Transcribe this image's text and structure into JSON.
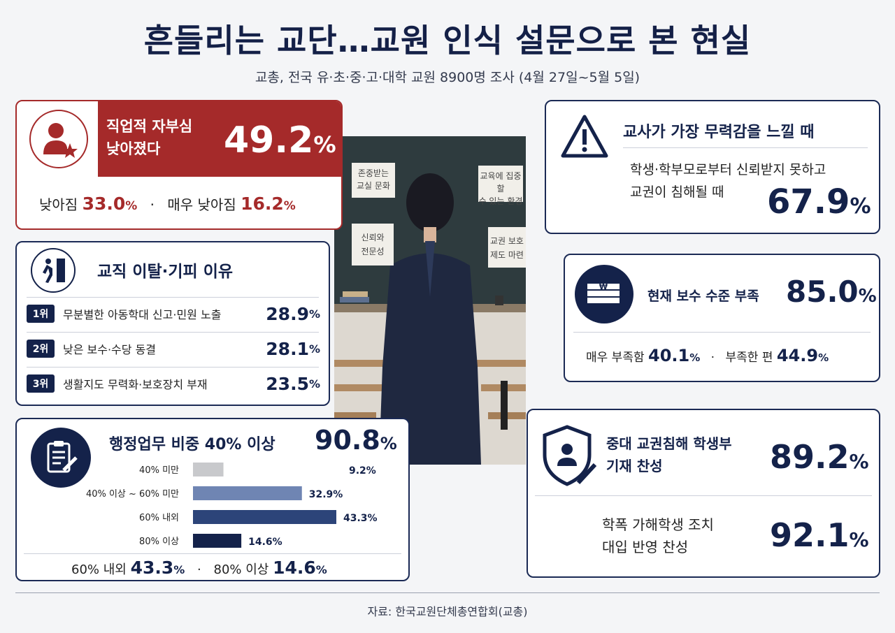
{
  "title": "흔들리는 교단…교원 인식 설문으로 본 현실",
  "subtitle": "교총, 전국 유·초·중·고·대학 교원 8900명 조사 (4월 27일~5월 5일)",
  "pride": {
    "label_line1": "직업적 자부심",
    "label_line2": "낮아졌다",
    "value": "49.2",
    "pct": "%",
    "sub1_label": "낮아짐",
    "sub1_value": "33.0",
    "sub_sep": "·",
    "sub2_label": "매우 낮아짐",
    "sub2_value": "16.2",
    "color": "#a52a2a"
  },
  "reasons": {
    "heading": "교직 이탈·기피 이유",
    "items": [
      {
        "rank": "1위",
        "text": "무분별한 아동학대 신고·민원 노출",
        "value": "28.9"
      },
      {
        "rank": "2위",
        "text": "낮은 보수·수당 동결",
        "value": "28.1"
      },
      {
        "rank": "3위",
        "text": "생활지도 무력화·보호장치 부재",
        "value": "23.5"
      }
    ]
  },
  "admin": {
    "heading": "행정업무 비중 40% 이상",
    "value": "90.8",
    "bars": [
      {
        "label": "40% 미만",
        "value": 9.2,
        "value_text": "9.2%",
        "color": "#c8c9cc"
      },
      {
        "label": "40% 이상 ~ 60% 미만",
        "value": 32.9,
        "value_text": "32.9%",
        "color": "#6f85b3"
      },
      {
        "label": "60% 내외",
        "value": 43.3,
        "value_text": "43.3%",
        "color": "#2c4479"
      },
      {
        "label": "80% 이상",
        "value": 14.6,
        "value_text": "14.6%",
        "color": "#14224a"
      }
    ],
    "foot1_label": "60% 내외",
    "foot1_value": "43.3",
    "foot_sep": "·",
    "foot2_label": "80% 이상",
    "foot2_value": "14.6"
  },
  "powerless": {
    "heading": "교사가 가장 무력감을 느낄 때",
    "line1": "학생·학부모로부터 신뢰받지 못하고",
    "line2": "교권이 침해될 때",
    "value": "67.9"
  },
  "pay": {
    "heading": "현재 보수 수준 부족",
    "value": "85.0",
    "sub1_label": "매우 부족함",
    "sub1_value": "40.1",
    "sub_sep": "·",
    "sub2_label": "부족한 편",
    "sub2_value": "44.9",
    "currency_symbol": "₩"
  },
  "record": {
    "item1_line1": "중대 교권침해 학생부",
    "item1_line2": "기재 찬성",
    "item1_value": "89.2",
    "item2_line1": "학폭 가해학생 조치",
    "item2_line2": "대입 반영 찬성",
    "item2_value": "92.1"
  },
  "photo_notes": {
    "note1_line1": "존중받는",
    "note1_line2": "교실 문화",
    "note2_line1": "교육에 집중할",
    "note2_line2": "수 있는 환경",
    "note3_line1": "신뢰와",
    "note3_line2": "전문성",
    "note4_line1": "교권 보호",
    "note4_line2": "제도 마련"
  },
  "pct_sign": "%",
  "source": "자료: 한국교원단체총연합회(교총)"
}
